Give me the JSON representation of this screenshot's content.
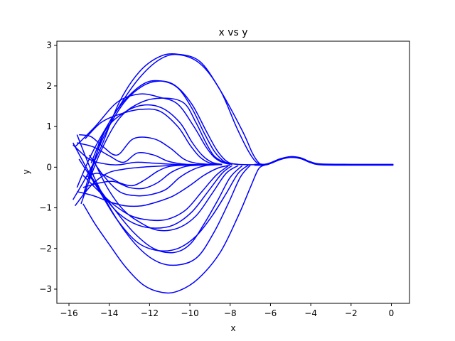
{
  "chart_data": {
    "type": "line",
    "title": "x vs y",
    "xlabel": "x",
    "ylabel": "y",
    "xlim": [
      -16.6,
      0.9
    ],
    "ylim": [
      -3.35,
      3.1
    ],
    "xticks": [
      -16,
      -14,
      -12,
      -10,
      -8,
      -6,
      -4,
      -2,
      0
    ],
    "xtick_labels": [
      "−16",
      "−14",
      "−12",
      "−10",
      "−8",
      "−6",
      "−4",
      "−2",
      "0"
    ],
    "yticks": [
      -3,
      -2,
      -1,
      0,
      1,
      2,
      3
    ],
    "ytick_labels": [
      "−3",
      "−2",
      "−1",
      "0",
      "1",
      "2",
      "3"
    ],
    "grid": false,
    "line_color": "#0000ff",
    "common_tail": {
      "x": [
        -6.8,
        -6.3,
        -6.0,
        -5.5,
        -5.0,
        -4.5,
        -4.0,
        -3.5,
        -2.0,
        0.1
      ],
      "y": [
        0.06,
        0.06,
        0.1,
        0.2,
        0.25,
        0.22,
        0.12,
        0.07,
        0.06,
        0.06
      ]
    },
    "series": [
      {
        "x": [
          -15.8,
          -15.1,
          -14.4,
          -13.5,
          -12.5,
          -11.5,
          -10.6,
          -9.5,
          -8.5,
          -7.4,
          -6.9,
          -6.6,
          -6.4,
          -6.0,
          -5.5,
          -5.0,
          -4.5,
          -4.0,
          -3.5,
          -2.0,
          0.1
        ],
        "y": [
          -0.8,
          -0.2,
          0.5,
          1.6,
          2.35,
          2.72,
          2.78,
          2.6,
          1.9,
          0.9,
          0.35,
          0.12,
          0.07,
          0.1,
          0.2,
          0.25,
          0.22,
          0.12,
          0.07,
          0.06,
          0.06
        ]
      },
      {
        "x": [
          -15.6,
          -14.8,
          -13.5,
          -12.5,
          -11.5,
          -10.6,
          -9.5,
          -8.5,
          -7.7,
          -7.1,
          -6.7,
          -6.4
        ],
        "y": [
          -0.5,
          0.4,
          1.5,
          2.2,
          2.65,
          2.77,
          2.55,
          1.9,
          1.0,
          0.4,
          0.12,
          0.07
        ]
      },
      {
        "x": [
          -15.3,
          -14.5,
          -13.4,
          -12.4,
          -11.5,
          -10.7,
          -9.9,
          -9.2,
          -8.7,
          -8.3,
          -8.0,
          -7.6,
          -6.8
        ],
        "y": [
          -0.7,
          0.5,
          1.5,
          1.98,
          2.12,
          2.0,
          1.55,
          0.9,
          0.45,
          0.2,
          0.1,
          0.07,
          0.06
        ]
      },
      {
        "x": [
          -15.0,
          -14.3,
          -13.4,
          -12.3,
          -11.4,
          -10.6,
          -9.9,
          -9.3,
          -8.8,
          -8.4,
          -8.1,
          -7.6
        ],
        "y": [
          -0.3,
          0.8,
          1.55,
          2.05,
          2.12,
          1.95,
          1.45,
          0.85,
          0.4,
          0.18,
          0.1,
          0.07
        ]
      },
      {
        "x": [
          -15.7,
          -14.7,
          -13.6,
          -12.5,
          -11.5,
          -10.6,
          -9.8,
          -9.2,
          -8.8,
          -8.4,
          -8.0
        ],
        "y": [
          0.5,
          1.0,
          1.6,
          1.8,
          1.72,
          1.55,
          1.0,
          0.5,
          0.25,
          0.12,
          0.07
        ]
      },
      {
        "x": [
          -15.4,
          -14.5,
          -13.5,
          -12.4,
          -11.3,
          -10.3,
          -9.7,
          -9.2,
          -8.8,
          -8.3,
          -7.9
        ],
        "y": [
          -0.9,
          0.3,
          1.2,
          1.6,
          1.7,
          1.58,
          1.1,
          0.6,
          0.28,
          0.12,
          0.07
        ]
      },
      {
        "x": [
          -14.9,
          -14.2,
          -13.4,
          -12.4,
          -11.4,
          -10.5,
          -9.9,
          -9.4,
          -8.9,
          -8.4
        ],
        "y": [
          0.1,
          0.9,
          1.3,
          1.52,
          1.46,
          1.1,
          0.62,
          0.3,
          0.12,
          0.07
        ]
      },
      {
        "x": [
          -15.2,
          -14.4,
          -13.5,
          -12.5,
          -11.5,
          -10.6,
          -10.0,
          -9.5,
          -9.0,
          -8.5
        ],
        "y": [
          0.7,
          1.1,
          1.3,
          1.42,
          1.38,
          1.0,
          0.55,
          0.25,
          0.1,
          0.07
        ]
      },
      {
        "x": [
          -15.5,
          -14.9,
          -14.3,
          -13.6,
          -12.8,
          -11.8,
          -11.0,
          -10.3,
          -9.7,
          -9.0,
          -8.4
        ],
        "y": [
          0.8,
          0.75,
          0.5,
          0.3,
          0.7,
          0.7,
          0.48,
          0.2,
          0.1,
          0.07,
          0.06
        ]
      },
      {
        "x": [
          -15.6,
          -14.8,
          -14.0,
          -13.3,
          -12.6,
          -11.8,
          -11.1,
          -10.4,
          -9.6
        ],
        "y": [
          0.6,
          0.5,
          0.28,
          0.12,
          0.35,
          0.3,
          0.15,
          0.08,
          0.06
        ]
      },
      {
        "x": [
          -15.8,
          -15.0,
          -14.2,
          -13.5,
          -12.7,
          -11.8,
          -10.8,
          -9.8,
          -8.8
        ],
        "y": [
          0.55,
          0.2,
          0.08,
          0.06,
          0.12,
          0.1,
          0.07,
          0.06,
          0.06
        ]
      },
      {
        "x": [
          -15.7,
          -14.9,
          -14.1,
          -13.3,
          -12.4,
          -11.4,
          -10.4,
          -9.4
        ],
        "y": [
          -0.95,
          -0.45,
          -0.15,
          -0.05,
          0.0,
          0.03,
          0.05,
          0.06
        ]
      },
      {
        "x": [
          -15.2,
          -14.6,
          -14.0,
          -13.4,
          -12.8,
          -12.2,
          -11.6,
          -11.0,
          -10.2,
          -9.4
        ],
        "y": [
          -0.25,
          -0.15,
          -0.25,
          -0.4,
          -0.45,
          -0.3,
          -0.1,
          0.02,
          0.05,
          0.06
        ]
      },
      {
        "x": [
          -15.3,
          -14.6,
          -13.8,
          -13.0,
          -12.3,
          -11.6,
          -10.9,
          -10.2,
          -9.5,
          -8.8
        ],
        "y": [
          -0.5,
          -0.4,
          -0.35,
          -0.5,
          -0.52,
          -0.38,
          -0.12,
          0.02,
          0.05,
          0.06
        ]
      },
      {
        "x": [
          -15.0,
          -14.3,
          -13.5,
          -12.7,
          -12.0,
          -11.2,
          -10.5,
          -9.8,
          -9.2,
          -8.6
        ],
        "y": [
          0.3,
          -0.2,
          -0.6,
          -0.7,
          -0.68,
          -0.55,
          -0.25,
          -0.05,
          0.04,
          0.06
        ]
      },
      {
        "x": [
          -15.6,
          -14.8,
          -14.0,
          -13.2,
          -12.4,
          -11.6,
          -10.8,
          -10.0,
          -9.3,
          -8.6,
          -8.0
        ],
        "y": [
          -0.6,
          -0.7,
          -0.85,
          -0.95,
          -0.95,
          -0.85,
          -0.7,
          -0.45,
          -0.2,
          -0.02,
          0.05
        ]
      },
      {
        "x": [
          -15.3,
          -14.5,
          -13.7,
          -12.9,
          -12.0,
          -11.1,
          -10.2,
          -9.4,
          -8.7,
          -8.1
        ],
        "y": [
          -0.2,
          -0.6,
          -0.95,
          -1.2,
          -1.3,
          -1.28,
          -1.05,
          -0.6,
          -0.2,
          0.03
        ]
      },
      {
        "x": [
          -15.1,
          -14.3,
          -13.5,
          -12.6,
          -11.7,
          -10.8,
          -9.9,
          -9.1,
          -8.4,
          -7.9
        ],
        "y": [
          -0.1,
          -0.7,
          -1.15,
          -1.42,
          -1.5,
          -1.42,
          -1.1,
          -0.6,
          -0.15,
          0.04
        ]
      },
      {
        "x": [
          -14.8,
          -14.1,
          -13.3,
          -12.5,
          -11.6,
          -10.6,
          -9.7,
          -8.9,
          -8.2,
          -7.6
        ],
        "y": [
          0.2,
          -0.5,
          -1.05,
          -1.35,
          -1.55,
          -1.5,
          -1.2,
          -0.65,
          -0.15,
          0.04
        ]
      },
      {
        "x": [
          -15.8,
          -14.8,
          -13.8,
          -12.8,
          -11.8,
          -10.8,
          -10.0,
          -9.3,
          -8.6,
          -8.0,
          -7.4
        ],
        "y": [
          0.6,
          -0.3,
          -1.0,
          -1.6,
          -2.0,
          -2.1,
          -1.9,
          -1.4,
          -0.8,
          -0.25,
          0.04
        ]
      },
      {
        "x": [
          -15.5,
          -14.6,
          -13.6,
          -12.6,
          -11.6,
          -10.6,
          -9.7,
          -8.9,
          -8.2,
          -7.6,
          -7.1
        ],
        "y": [
          0.2,
          -0.5,
          -1.3,
          -1.85,
          -2.05,
          -2.0,
          -1.7,
          -1.2,
          -0.65,
          -0.15,
          0.05
        ]
      },
      {
        "x": [
          -15.6,
          -14.7,
          -13.6,
          -12.5,
          -11.5,
          -10.5,
          -9.6,
          -8.8,
          -8.1,
          -7.5,
          -7.0
        ],
        "y": [
          0.8,
          -0.3,
          -1.3,
          -2.0,
          -2.35,
          -2.4,
          -2.2,
          -1.6,
          -0.9,
          -0.25,
          0.05
        ]
      },
      {
        "x": [
          -15.3,
          -14.7,
          -14.0,
          -13.2,
          -12.3,
          -11.4,
          -10.6,
          -9.6,
          -8.5,
          -7.6,
          -7.0,
          -6.6,
          -6.3
        ],
        "y": [
          -0.9,
          -1.4,
          -1.9,
          -2.45,
          -2.9,
          -3.08,
          -3.05,
          -2.75,
          -2.1,
          -1.2,
          -0.5,
          -0.05,
          0.05
        ]
      }
    ]
  }
}
